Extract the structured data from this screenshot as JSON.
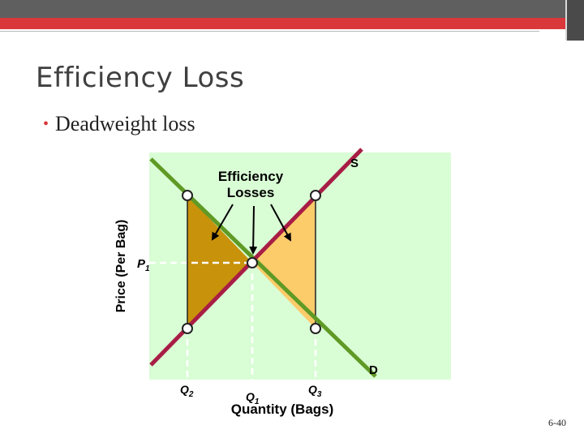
{
  "slide": {
    "title": "Efficiency Loss",
    "bullet": "Deadweight loss",
    "page_number": "6-40"
  },
  "diagram": {
    "y_axis_label": "Price (Per Bag)",
    "x_axis_label": "Quantity (Bags)",
    "supply_label": "S",
    "demand_label": "D",
    "price_label": "P",
    "price_subscript": "1",
    "annotation_line1": "Efficiency",
    "annotation_line2": "Losses",
    "q2_label": "Q",
    "q2_subscript": "2",
    "q1_label": "Q",
    "q1_subscript": "1",
    "q3_label": "Q",
    "q3_subscript": "3",
    "colors": {
      "plot_background": "#d9fdd5",
      "supply_line": "#a81d45",
      "demand_line": "#5f9a25",
      "loss_left": "#c8920a",
      "loss_right": "#fccb6a"
    }
  }
}
